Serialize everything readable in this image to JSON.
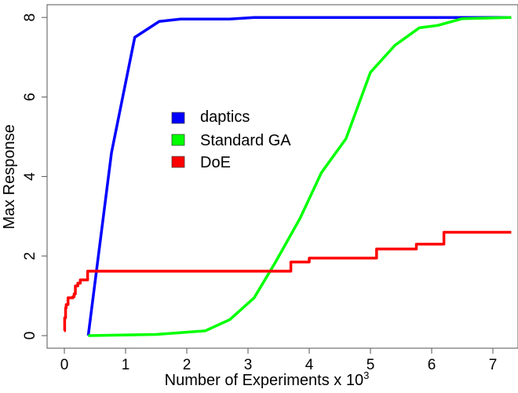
{
  "chart_data": {
    "type": "line",
    "title": "",
    "xlabel": "Number of Experiments x 10",
    "xlabel_superscript": "3",
    "ylabel": "Max Response",
    "xlim": [
      -0.28,
      7.28
    ],
    "ylim": [
      -0.2,
      8.3
    ],
    "xticks": [
      "0",
      "1",
      "2",
      "3",
      "4",
      "5",
      "6",
      "7"
    ],
    "yticks": [
      "0",
      "2",
      "4",
      "6",
      "8"
    ],
    "grid": false,
    "legend_position": "center-left",
    "series": [
      {
        "name": "daptics",
        "color": "#0000ff",
        "step": false,
        "x": [
          0.39,
          0.77,
          1.15,
          1.55,
          1.9,
          2.7,
          3.1,
          7.3
        ],
        "y": [
          0,
          4.6,
          7.5,
          7.9,
          7.96,
          7.96,
          8,
          8
        ]
      },
      {
        "name": "Standard GA",
        "color": "#00ff00",
        "step": false,
        "x": [
          0.39,
          1.5,
          2.3,
          2.7,
          3.1,
          3.45,
          3.85,
          4.2,
          4.6,
          5.0,
          5.4,
          5.8,
          6.1,
          6.5,
          7.3
        ],
        "y": [
          0,
          0.03,
          0.12,
          0.4,
          0.95,
          1.85,
          2.95,
          4.1,
          4.95,
          6.62,
          7.3,
          7.74,
          7.8,
          7.97,
          8
        ]
      },
      {
        "name": "DoE",
        "color": "#ff0000",
        "step": true,
        "x": [
          0,
          0.005,
          0.02,
          0.03,
          0.06,
          0.14,
          0.16,
          0.18,
          0.22,
          0.26,
          0.38,
          3.7,
          4.0,
          5.1,
          5.75,
          6.2,
          7.3
        ],
        "y": [
          0.12,
          0.45,
          0.7,
          0.78,
          0.95,
          0.98,
          1.05,
          1.25,
          1.32,
          1.4,
          1.62,
          1.85,
          1.95,
          2.18,
          2.3,
          2.6,
          2.6
        ]
      }
    ]
  }
}
